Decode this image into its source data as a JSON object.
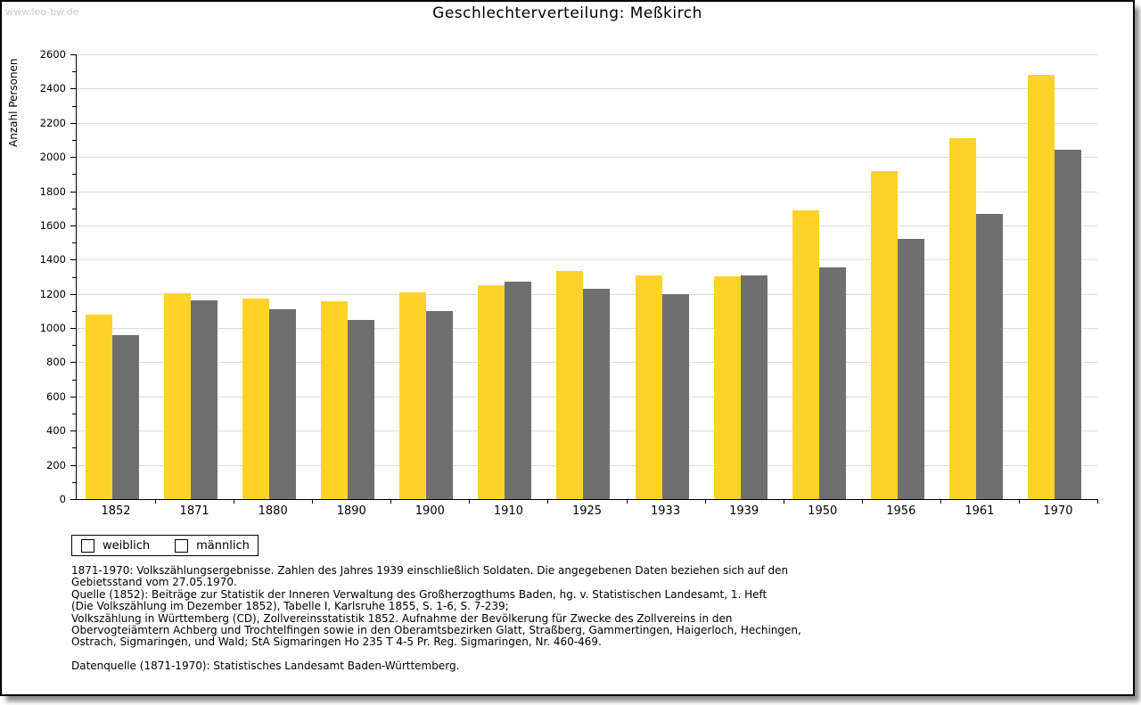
{
  "watermark": "www.leo-bw.de",
  "chart_data": {
    "type": "bar",
    "title": "Geschlechterverteilung: Meßkirch",
    "xlabel": "",
    "ylabel": "Anzahl Personen",
    "categories": [
      "1852",
      "1871",
      "1880",
      "1890",
      "1900",
      "1910",
      "1925",
      "1933",
      "1939",
      "1950",
      "1956",
      "1961",
      "1970"
    ],
    "series": [
      {
        "name": "weiblich",
        "color": "#fdd32a",
        "values": [
          1080,
          1205,
          1170,
          1155,
          1210,
          1250,
          1335,
          1310,
          1305,
          1690,
          1920,
          2110,
          2480
        ]
      },
      {
        "name": "männlich",
        "color": "#6f6f6f",
        "values": [
          960,
          1160,
          1110,
          1045,
          1100,
          1270,
          1230,
          1200,
          1310,
          1355,
          1520,
          1670,
          2045
        ]
      }
    ],
    "ylim": [
      0,
      2600
    ],
    "yticks": [
      0,
      200,
      400,
      600,
      800,
      1000,
      1200,
      1400,
      1600,
      1800,
      2000,
      2200,
      2400,
      2600
    ],
    "ytick_minor_step": 100,
    "grid": true,
    "gridline_color": "#dcdcdc",
    "legend_position": "bottom-left"
  },
  "footer": {
    "lines": [
      "1871-1970: Volkszählungsergebnisse. Zahlen des Jahres 1939 einschließlich Soldaten. Die angegebenen Daten beziehen sich auf den",
      "Gebietsstand vom 27.05.1970.",
      "Quelle (1852): Beiträge zur Statistik der Inneren Verwaltung des Großherzogthums Baden, hg. v. Statistischen Landesamt, 1. Heft",
      "(Die Volkszählung im Dezember 1852), Tabelle I, Karlsruhe 1855, S. 1-6, S. 7-239;",
      "Volkszählung in Württemberg (CD), Zollvereinsstatistik 1852. Aufnahme der Bevölkerung für Zwecke des Zollvereins in den",
      "Obervogteiämtern Achberg und Trochtelfingen sowie in den Oberamtsbezirken Glatt, Straßberg, Gammertingen, Haigerloch, Hechingen,",
      "Ostrach, Sigmaringen, und Wald; StA Sigmaringen Ho 235 T 4-5 Pr. Reg. Sigmaringen, Nr. 460-469."
    ],
    "datasource": "Datenquelle (1871-1970): Statistisches Landesamt Baden-Württemberg."
  }
}
